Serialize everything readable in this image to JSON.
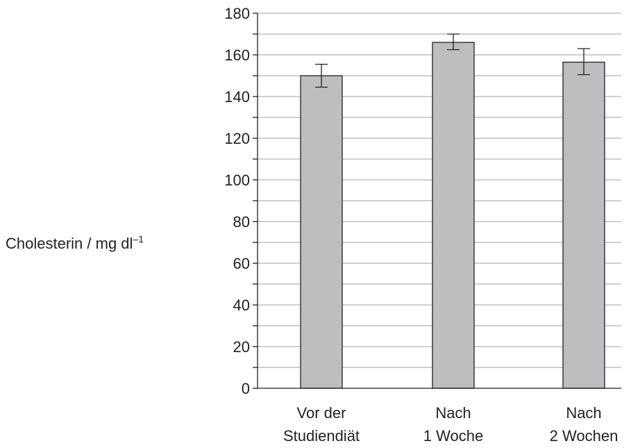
{
  "chart_data": {
    "type": "bar",
    "title": "",
    "xlabel": "",
    "ylabel": "Cholesterin / mg dl",
    "ylabel_superscript": "–1",
    "ylim": [
      0,
      180
    ],
    "y_major_step": 20,
    "y_minor_step": 10,
    "y_ticks": [
      "0",
      "20",
      "40",
      "60",
      "80",
      "100",
      "120",
      "140",
      "160",
      "180"
    ],
    "grid": "horizontal",
    "legend": "none",
    "categories": [
      [
        "Vor der",
        "Studiendiät"
      ],
      [
        "Nach",
        "1 Woche"
      ],
      [
        "Nach",
        "2 Wochen"
      ]
    ],
    "values": [
      150,
      166,
      156.5
    ],
    "error_bars": [
      {
        "low": 144.5,
        "high": 155.5
      },
      {
        "low": 162.5,
        "high": 170
      },
      {
        "low": 150.5,
        "high": 163
      }
    ],
    "colors": {
      "bar_fill": "#bcbec0",
      "bar_stroke": "#231f20",
      "axis": "#231f20",
      "grid": "#9d9fa2",
      "text": "#231f20"
    }
  }
}
